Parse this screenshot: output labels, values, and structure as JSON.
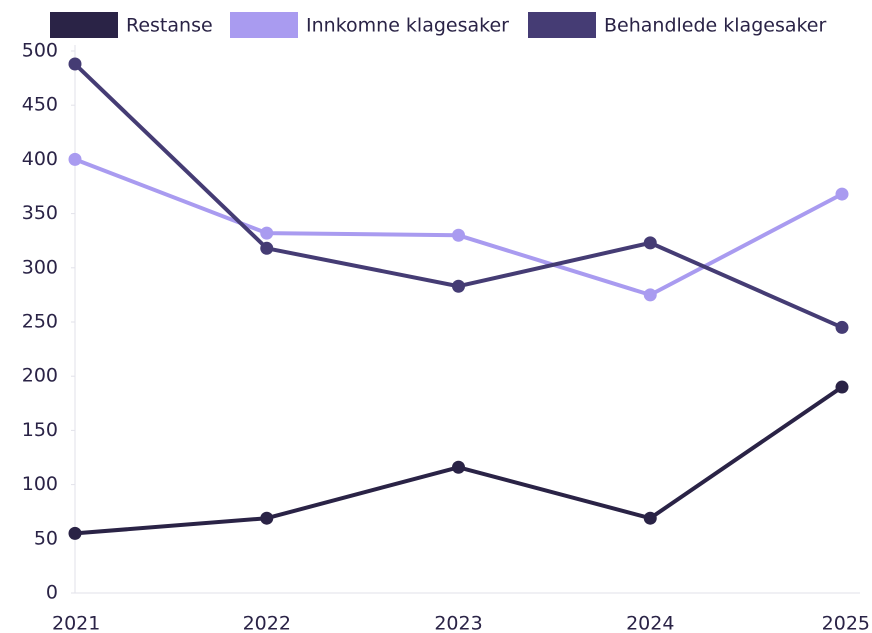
{
  "chart_data": {
    "type": "line",
    "categories": [
      "2021",
      "2022",
      "2023",
      "2024",
      "2025"
    ],
    "series": [
      {
        "name": "Restanse",
        "color": "#2a2346",
        "values": [
          55,
          69,
          116,
          69,
          190
        ]
      },
      {
        "name": "Innkomne klagesaker",
        "color": "#a99bf0",
        "values": [
          400,
          332,
          330,
          275,
          368
        ]
      },
      {
        "name": "Behandlede klagesaker",
        "color": "#453c74",
        "values": [
          488,
          318,
          283,
          323,
          245
        ]
      }
    ],
    "ylim": [
      0,
      500
    ],
    "yticks": [
      0,
      50,
      100,
      150,
      200,
      250,
      300,
      350,
      400,
      450,
      500
    ],
    "legend": "top"
  }
}
